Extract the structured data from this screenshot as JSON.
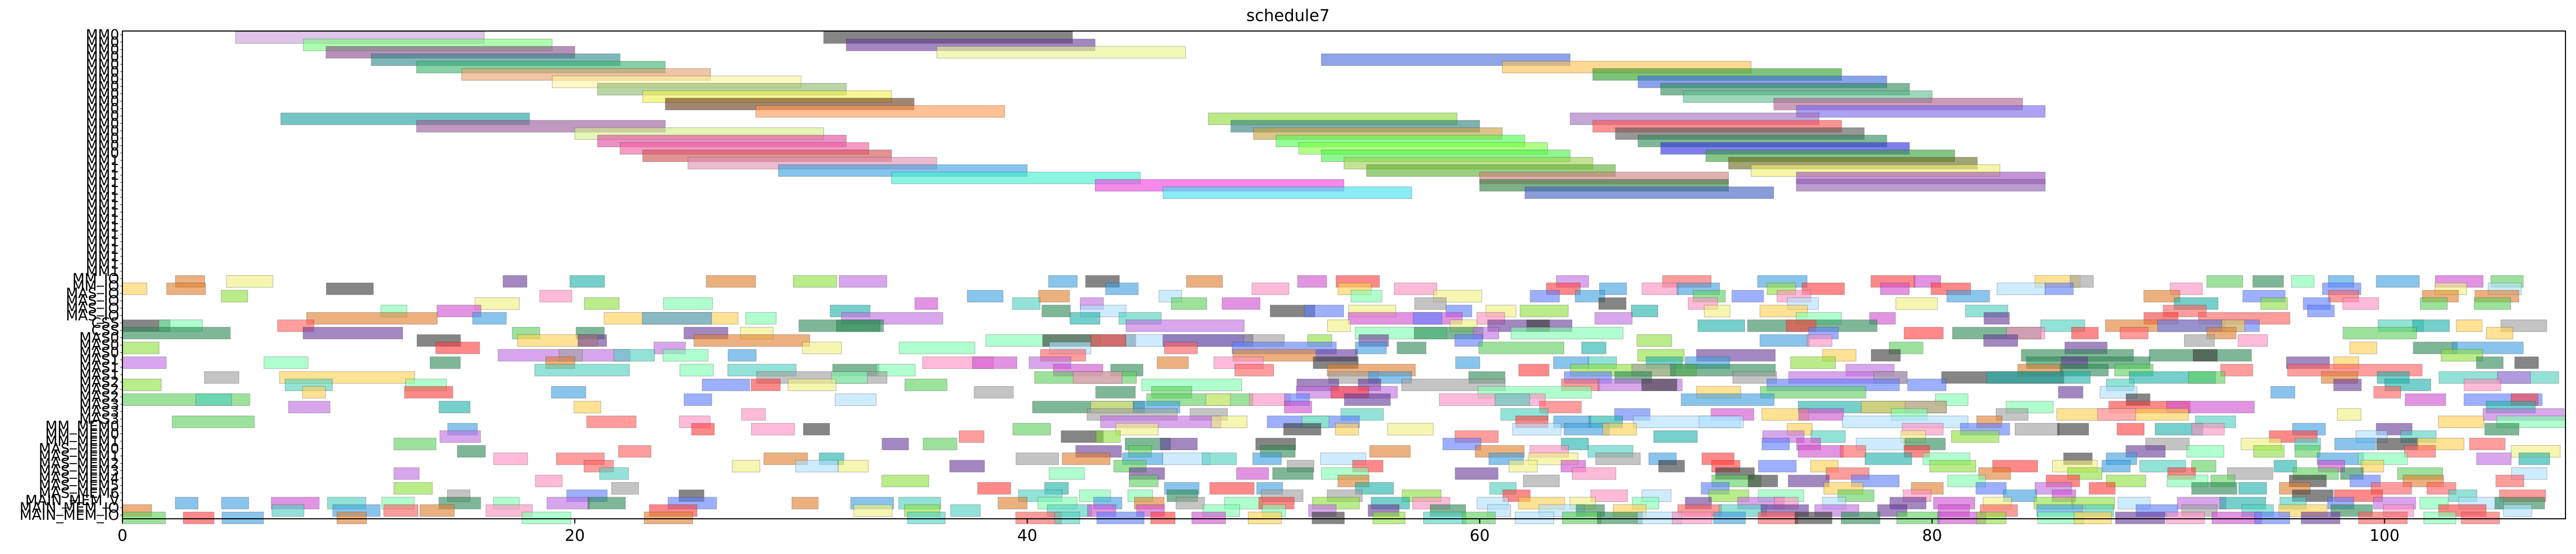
{
  "chart_data": {
    "type": "gantt",
    "title": "schedule7",
    "xlabel": "",
    "ylabel": "",
    "xlim": [
      0,
      108
    ],
    "xticks": [
      0,
      20,
      40,
      60,
      80,
      100
    ],
    "grid": false,
    "rows": [
      "MM0",
      "MM0",
      "MM0",
      "MM0",
      "MM0",
      "MM0",
      "MM0",
      "MM0",
      "MM0",
      "MM0",
      "MM0",
      "MM0",
      "MM0",
      "MM0",
      "MM0",
      "MM0",
      "MM0",
      "MM1",
      "MM1",
      "MM1",
      "MM1",
      "MM1",
      "MM1",
      "MM1",
      "MM1",
      "MM1",
      "MM1",
      "MM1",
      "MM1",
      "MM1",
      "MM1",
      "MM1",
      "MM1",
      "MM_IO",
      "MM_IO",
      "MAS_IO",
      "MAS_IO",
      "MAS_IO",
      "MAS_IO",
      "CSS",
      "CSS",
      "MAS0",
      "MAS0",
      "MAS0",
      "MAS1",
      "MAS1",
      "MAS1",
      "MAS2",
      "MAS2",
      "MAS2",
      "MAS3",
      "MAS3",
      "MAS3",
      "MM_MEM0",
      "MM_MEM0",
      "MM_MEM1",
      "MAS_MEM0",
      "MAS_MEM1",
      "MAS_MEM2",
      "MAS_MEM3",
      "MAS_MEM4",
      "MAS_MEM5",
      "MAS_MEM6",
      "MAIN_MEM_V",
      "MAIN_MEM_IO",
      "MAIN_MEM_IO"
    ],
    "bars": [
      {
        "row": 0,
        "start": 5.0,
        "end": 16.0,
        "color": "#c9a0dc"
      },
      {
        "row": 0,
        "start": 31.0,
        "end": 42.0,
        "color": "#3a3a3a"
      },
      {
        "row": 1,
        "start": 8.0,
        "end": 19.0,
        "color": "#7cfc7c"
      },
      {
        "row": 1,
        "start": 32.0,
        "end": 43.0,
        "color": "#6a3d9a"
      },
      {
        "row": 2,
        "start": 9.0,
        "end": 20.0,
        "color": "#8b4a8b"
      },
      {
        "row": 2,
        "start": 36.0,
        "end": 47.0,
        "color": "#e6f58c"
      },
      {
        "row": 3,
        "start": 11.0,
        "end": 22.0,
        "color": "#2e8b8b"
      },
      {
        "row": 3,
        "start": 53.0,
        "end": 64.0,
        "color": "#4a6bdc"
      },
      {
        "row": 4,
        "start": 13.0,
        "end": 24.0,
        "color": "#3cb371"
      },
      {
        "row": 4,
        "start": 61.0,
        "end": 72.0,
        "color": "#ffc04d"
      },
      {
        "row": 5,
        "start": 15.0,
        "end": 26.0,
        "color": "#e8a070"
      },
      {
        "row": 5,
        "start": 65.0,
        "end": 76.0,
        "color": "#2ca02c"
      },
      {
        "row": 6,
        "start": 19.0,
        "end": 30.0,
        "color": "#fff3a0"
      },
      {
        "row": 6,
        "start": 67.0,
        "end": 78.0,
        "color": "#4169e1"
      },
      {
        "row": 7,
        "start": 21.0,
        "end": 32.0,
        "color": "#8fbc6f"
      },
      {
        "row": 7,
        "start": 68.0,
        "end": 79.0,
        "color": "#2e8b57"
      },
      {
        "row": 8,
        "start": 23.0,
        "end": 34.0,
        "color": "#f0f050"
      },
      {
        "row": 8,
        "start": 69.0,
        "end": 80.0,
        "color": "#5fbf8f"
      },
      {
        "row": 9,
        "start": 24.0,
        "end": 35.0,
        "color": "#6b3a1e"
      },
      {
        "row": 9,
        "start": 73.0,
        "end": 84.0,
        "color": "#b06090"
      },
      {
        "row": 10,
        "start": 28.0,
        "end": 39.0,
        "color": "#ff9a50"
      },
      {
        "row": 10,
        "start": 74.0,
        "end": 85.0,
        "color": "#7b68ee"
      },
      {
        "row": 11,
        "start": 7.0,
        "end": 18.0,
        "color": "#20a0a0"
      },
      {
        "row": 11,
        "start": 48.0,
        "end": 59.0,
        "color": "#8fdc3c"
      },
      {
        "row": 11,
        "start": 64.0,
        "end": 75.0,
        "color": "#a070c0"
      },
      {
        "row": 12,
        "start": 13.0,
        "end": 24.0,
        "color": "#9a5a9a"
      },
      {
        "row": 12,
        "start": 49.0,
        "end": 60.0,
        "color": "#2f7f7f"
      },
      {
        "row": 12,
        "start": 65.0,
        "end": 76.0,
        "color": "#ff5050"
      },
      {
        "row": 13,
        "start": 20.0,
        "end": 31.0,
        "color": "#d4f08c"
      },
      {
        "row": 13,
        "start": 50.0,
        "end": 61.0,
        "color": "#c8a040"
      },
      {
        "row": 13,
        "start": 66.0,
        "end": 77.0,
        "color": "#555555"
      },
      {
        "row": 14,
        "start": 21.0,
        "end": 32.0,
        "color": "#e04aa0"
      },
      {
        "row": 14,
        "start": 51.0,
        "end": 62.0,
        "color": "#50ff50"
      },
      {
        "row": 14,
        "start": 67.0,
        "end": 78.0,
        "color": "#2e8b57"
      },
      {
        "row": 15,
        "start": 22.0,
        "end": 33.0,
        "color": "#f060a0"
      },
      {
        "row": 15,
        "start": 52.0,
        "end": 63.0,
        "color": "#80ff40"
      },
      {
        "row": 15,
        "start": 68.0,
        "end": 79.0,
        "color": "#3030e0"
      },
      {
        "row": 16,
        "start": 23.0,
        "end": 34.0,
        "color": "#d05050"
      },
      {
        "row": 16,
        "start": 53.0,
        "end": 64.0,
        "color": "#4cf04c"
      },
      {
        "row": 16,
        "start": 70.0,
        "end": 81.0,
        "color": "#3aa03a"
      },
      {
        "row": 17,
        "start": 25.0,
        "end": 36.0,
        "color": "#e090b0"
      },
      {
        "row": 17,
        "start": 54.0,
        "end": 65.0,
        "color": "#a0d050"
      },
      {
        "row": 17,
        "start": 71.0,
        "end": 82.0,
        "color": "#6a6a20"
      },
      {
        "row": 18,
        "start": 29.0,
        "end": 40.0,
        "color": "#3aa0e0"
      },
      {
        "row": 18,
        "start": 55.0,
        "end": 66.0,
        "color": "#60b030"
      },
      {
        "row": 18,
        "start": 72.0,
        "end": 83.0,
        "color": "#f0f070"
      },
      {
        "row": 19,
        "start": 34.0,
        "end": 45.0,
        "color": "#40f0d0"
      },
      {
        "row": 19,
        "start": 60.0,
        "end": 71.0,
        "color": "#d08080"
      },
      {
        "row": 19,
        "start": 74.0,
        "end": 85.0,
        "color": "#a050c0"
      },
      {
        "row": 20,
        "start": 43.0,
        "end": 54.0,
        "color": "#f040e0"
      },
      {
        "row": 20,
        "start": 60.0,
        "end": 71.0,
        "color": "#2f7f3f"
      },
      {
        "row": 20,
        "start": 74.0,
        "end": 85.0,
        "color": "#9060b0"
      },
      {
        "row": 21,
        "start": 46.0,
        "end": 57.0,
        "color": "#40e0f0"
      },
      {
        "row": 21,
        "start": 62.0,
        "end": 73.0,
        "color": "#4060c0"
      }
    ],
    "scatter_seed": 7
  }
}
